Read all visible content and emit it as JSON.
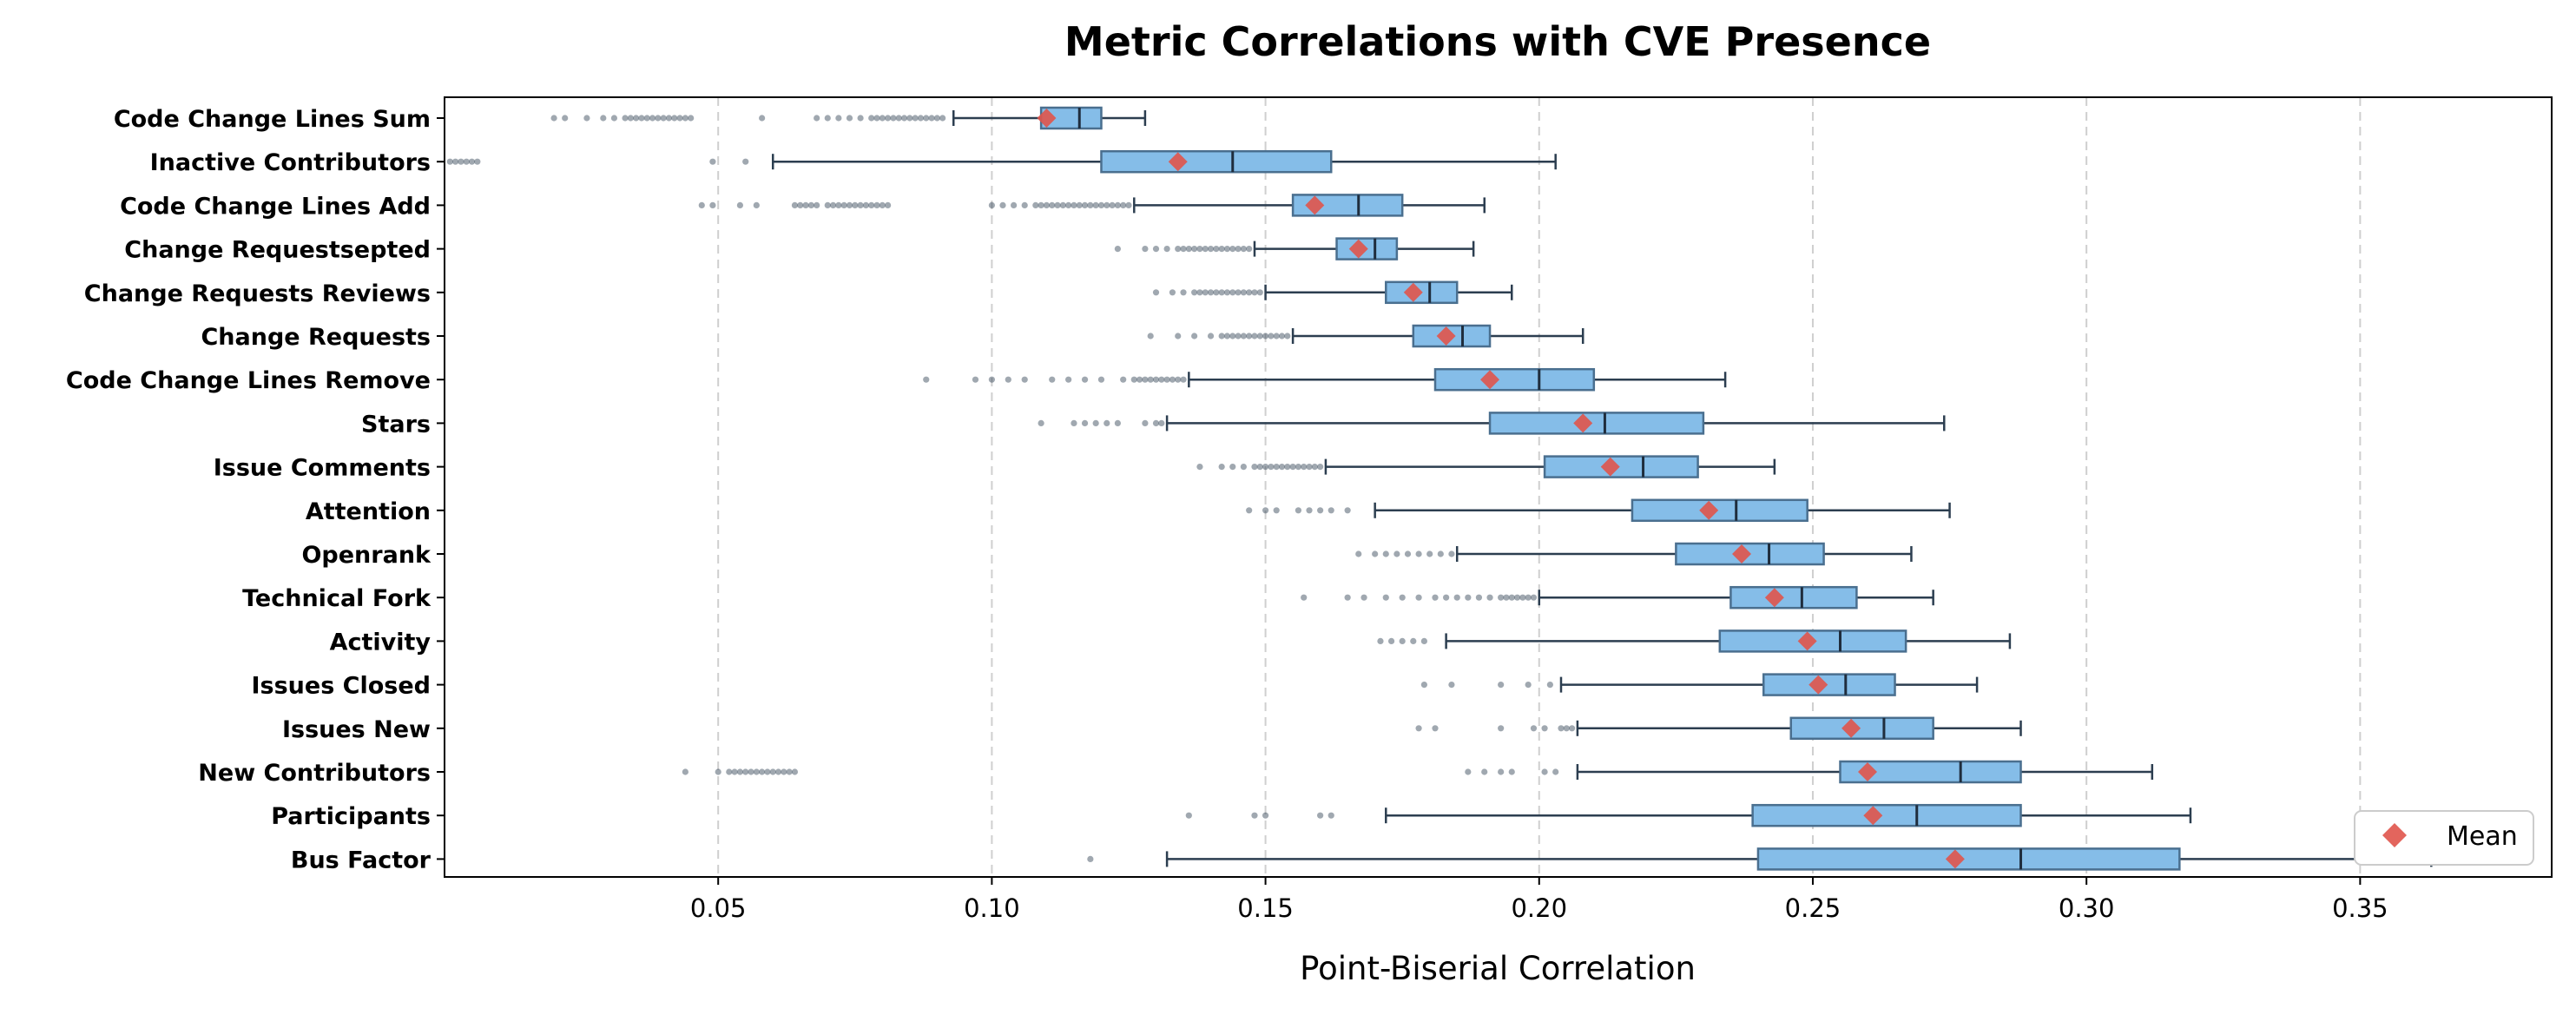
{
  "chart_data": {
    "type": "boxplot",
    "orientation": "horizontal",
    "title": "Metric Correlations with CVE Presence",
    "xlabel": "Point-Biserial Correlation",
    "ylabel": "",
    "xlim": [
      0.0,
      0.385
    ],
    "xticks": [
      0.05,
      0.1,
      0.15,
      0.2,
      0.25,
      0.3,
      0.35
    ],
    "xtick_labels": [
      "0.05",
      "0.10",
      "0.15",
      "0.20",
      "0.25",
      "0.30",
      "0.35"
    ],
    "grid": "vertical dashed",
    "legend": {
      "placement": "bottom-right",
      "entries": [
        "Mean"
      ]
    },
    "colors": {
      "box_fill": "#85bde8",
      "box_edge": "#4a6f8f",
      "median": "#1f2d3d",
      "whisker": "#2c3e50",
      "mean_marker": "#e0544b",
      "outlier": "#2c3e50"
    },
    "series": [
      {
        "name": "Code Change Lines Sum",
        "whisker_low": 0.093,
        "q1": 0.109,
        "median": 0.116,
        "q3": 0.12,
        "whisker_high": 0.128,
        "mean": 0.11,
        "outliers": [
          0.02,
          0.022,
          0.026,
          0.029,
          0.031,
          0.033,
          0.034,
          0.035,
          0.036,
          0.037,
          0.038,
          0.039,
          0.04,
          0.041,
          0.042,
          0.043,
          0.044,
          0.045,
          0.058,
          0.068,
          0.07,
          0.072,
          0.074,
          0.076,
          0.078,
          0.079,
          0.08,
          0.081,
          0.082,
          0.083,
          0.084,
          0.085,
          0.086,
          0.087,
          0.088,
          0.089,
          0.09,
          0.091
        ]
      },
      {
        "name": "Inactive Contributors",
        "whisker_low": 0.06,
        "q1": 0.12,
        "median": 0.144,
        "q3": 0.162,
        "whisker_high": 0.203,
        "mean": 0.134,
        "outliers": [
          0.001,
          0.002,
          0.003,
          0.004,
          0.005,
          0.006,
          0.049,
          0.055
        ]
      },
      {
        "name": "Code Change Lines Add",
        "whisker_low": 0.126,
        "q1": 0.155,
        "median": 0.167,
        "q3": 0.175,
        "whisker_high": 0.19,
        "mean": 0.159,
        "outliers": [
          0.047,
          0.049,
          0.054,
          0.057,
          0.064,
          0.065,
          0.066,
          0.067,
          0.068,
          0.07,
          0.071,
          0.072,
          0.073,
          0.074,
          0.075,
          0.076,
          0.077,
          0.078,
          0.079,
          0.08,
          0.081,
          0.1,
          0.102,
          0.104,
          0.106,
          0.108,
          0.109,
          0.11,
          0.111,
          0.112,
          0.113,
          0.114,
          0.115,
          0.116,
          0.117,
          0.118,
          0.119,
          0.12,
          0.121,
          0.122,
          0.123,
          0.124,
          0.125
        ]
      },
      {
        "name": "Change Requestsepted",
        "whisker_low": 0.148,
        "q1": 0.163,
        "median": 0.17,
        "q3": 0.174,
        "whisker_high": 0.188,
        "mean": 0.167,
        "outliers": [
          0.123,
          0.128,
          0.13,
          0.132,
          0.134,
          0.135,
          0.136,
          0.137,
          0.138,
          0.139,
          0.14,
          0.141,
          0.142,
          0.143,
          0.144,
          0.145,
          0.146,
          0.147
        ]
      },
      {
        "name": "Change Requests Reviews",
        "whisker_low": 0.15,
        "q1": 0.172,
        "median": 0.18,
        "q3": 0.185,
        "whisker_high": 0.195,
        "mean": 0.177,
        "outliers": [
          0.13,
          0.133,
          0.135,
          0.137,
          0.138,
          0.139,
          0.14,
          0.141,
          0.142,
          0.143,
          0.144,
          0.145,
          0.146,
          0.147,
          0.148,
          0.149
        ]
      },
      {
        "name": "Change Requests",
        "whisker_low": 0.155,
        "q1": 0.177,
        "median": 0.186,
        "q3": 0.191,
        "whisker_high": 0.208,
        "mean": 0.183,
        "outliers": [
          0.129,
          0.134,
          0.137,
          0.14,
          0.142,
          0.143,
          0.144,
          0.145,
          0.146,
          0.147,
          0.148,
          0.149,
          0.15,
          0.151,
          0.152,
          0.153,
          0.154
        ]
      },
      {
        "name": "Code Change Lines Remove",
        "whisker_low": 0.136,
        "q1": 0.181,
        "median": 0.2,
        "q3": 0.21,
        "whisker_high": 0.234,
        "mean": 0.191,
        "outliers": [
          0.088,
          0.097,
          0.1,
          0.103,
          0.106,
          0.111,
          0.114,
          0.117,
          0.12,
          0.124,
          0.126,
          0.127,
          0.128,
          0.129,
          0.13,
          0.131,
          0.132,
          0.133,
          0.134,
          0.135
        ]
      },
      {
        "name": "Stars",
        "whisker_low": 0.132,
        "q1": 0.191,
        "median": 0.212,
        "q3": 0.23,
        "whisker_high": 0.274,
        "mean": 0.208,
        "outliers": [
          0.109,
          0.115,
          0.117,
          0.119,
          0.121,
          0.123,
          0.128,
          0.13,
          0.131
        ]
      },
      {
        "name": "Issue Comments",
        "whisker_low": 0.161,
        "q1": 0.201,
        "median": 0.219,
        "q3": 0.229,
        "whisker_high": 0.243,
        "mean": 0.213,
        "outliers": [
          0.138,
          0.142,
          0.144,
          0.146,
          0.148,
          0.149,
          0.15,
          0.151,
          0.152,
          0.153,
          0.154,
          0.155,
          0.156,
          0.157,
          0.158,
          0.159,
          0.16
        ]
      },
      {
        "name": "Attention",
        "whisker_low": 0.17,
        "q1": 0.217,
        "median": 0.236,
        "q3": 0.249,
        "whisker_high": 0.275,
        "mean": 0.231,
        "outliers": [
          0.147,
          0.15,
          0.152,
          0.156,
          0.158,
          0.16,
          0.162,
          0.165
        ]
      },
      {
        "name": "Openrank",
        "whisker_low": 0.185,
        "q1": 0.225,
        "median": 0.242,
        "q3": 0.252,
        "whisker_high": 0.268,
        "mean": 0.237,
        "outliers": [
          0.167,
          0.17,
          0.172,
          0.174,
          0.176,
          0.178,
          0.18,
          0.182,
          0.184
        ]
      },
      {
        "name": "Technical Fork",
        "whisker_low": 0.2,
        "q1": 0.235,
        "median": 0.248,
        "q3": 0.258,
        "whisker_high": 0.272,
        "mean": 0.243,
        "outliers": [
          0.157,
          0.165,
          0.168,
          0.172,
          0.175,
          0.178,
          0.181,
          0.183,
          0.185,
          0.187,
          0.189,
          0.191,
          0.193,
          0.194,
          0.195,
          0.196,
          0.197,
          0.198,
          0.199
        ]
      },
      {
        "name": "Activity",
        "whisker_low": 0.183,
        "q1": 0.233,
        "median": 0.255,
        "q3": 0.267,
        "whisker_high": 0.286,
        "mean": 0.249,
        "outliers": [
          0.171,
          0.173,
          0.175,
          0.177,
          0.179
        ]
      },
      {
        "name": "Issues Closed",
        "whisker_low": 0.204,
        "q1": 0.241,
        "median": 0.256,
        "q3": 0.265,
        "whisker_high": 0.28,
        "mean": 0.251,
        "outliers": [
          0.179,
          0.184,
          0.193,
          0.198,
          0.202
        ]
      },
      {
        "name": "Issues New",
        "whisker_low": 0.207,
        "q1": 0.246,
        "median": 0.263,
        "q3": 0.272,
        "whisker_high": 0.288,
        "mean": 0.257,
        "outliers": [
          0.178,
          0.181,
          0.193,
          0.199,
          0.201,
          0.204,
          0.205,
          0.206
        ]
      },
      {
        "name": "New Contributors",
        "whisker_low": 0.207,
        "q1": 0.255,
        "median": 0.277,
        "q3": 0.288,
        "whisker_high": 0.312,
        "mean": 0.26,
        "outliers": [
          0.044,
          0.05,
          0.052,
          0.053,
          0.054,
          0.055,
          0.056,
          0.057,
          0.058,
          0.059,
          0.06,
          0.061,
          0.062,
          0.063,
          0.064,
          0.187,
          0.19,
          0.193,
          0.195,
          0.201,
          0.203
        ]
      },
      {
        "name": "Participants",
        "whisker_low": 0.172,
        "q1": 0.239,
        "median": 0.269,
        "q3": 0.288,
        "whisker_high": 0.319,
        "mean": 0.261,
        "outliers": [
          0.136,
          0.148,
          0.15,
          0.16,
          0.162
        ]
      },
      {
        "name": "Bus Factor",
        "whisker_low": 0.132,
        "q1": 0.24,
        "median": 0.288,
        "q3": 0.317,
        "whisker_high": 0.363,
        "mean": 0.276,
        "outliers": [
          0.118
        ]
      }
    ]
  }
}
